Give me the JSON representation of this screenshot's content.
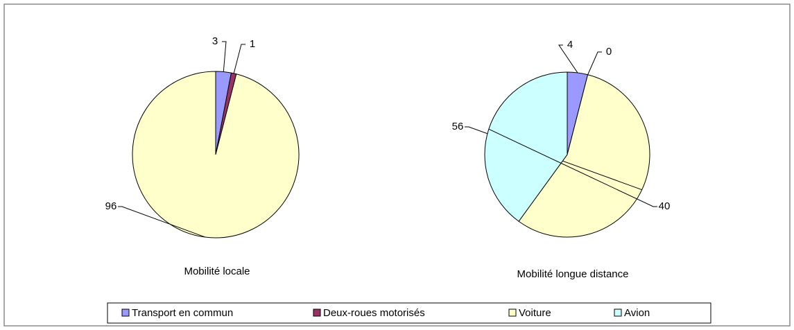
{
  "chart_data": [
    {
      "type": "pie",
      "title": "Mobilité locale",
      "categories": [
        "Transport en commun",
        "Deux-roues motorisés",
        "Voiture"
      ],
      "values": [
        3,
        1,
        96
      ],
      "colors": [
        "#9999ff",
        "#993366",
        "#ffffcc"
      ]
    },
    {
      "type": "pie",
      "title": "Mobilité longue distance",
      "categories": [
        "Transport en commun",
        "Deux-roues motorisés",
        "Voiture",
        "Avion"
      ],
      "values": [
        4,
        0,
        56,
        40
      ],
      "colors": [
        "#9999ff",
        "#993366",
        "#ffffcc",
        "#ccffff"
      ]
    }
  ],
  "legend": {
    "items": [
      {
        "name": "Transport en commun",
        "color": "#9999ff"
      },
      {
        "name": "Deux-roues motorisés",
        "color": "#993366"
      },
      {
        "name": "Voiture",
        "color": "#ffffcc"
      },
      {
        "name": "Avion",
        "color": "#ccffff"
      }
    ]
  }
}
